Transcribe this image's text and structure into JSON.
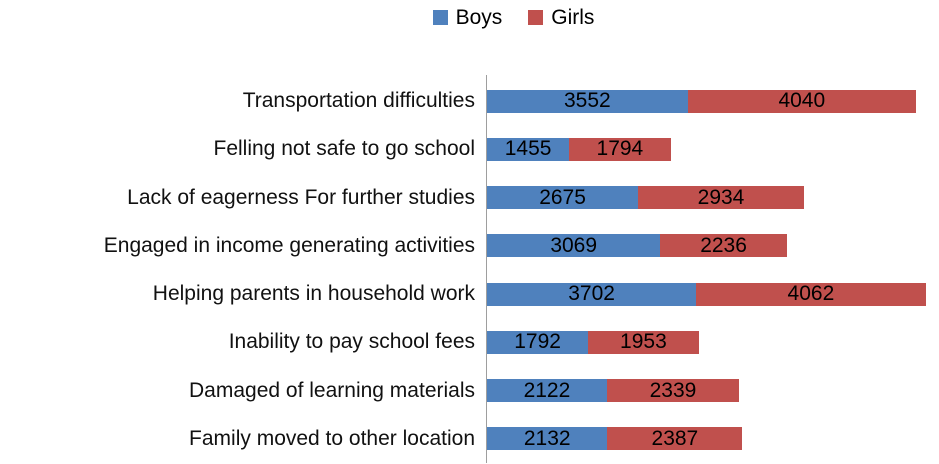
{
  "chart_data": {
    "type": "bar",
    "orientation": "horizontal",
    "stacked": true,
    "title": "",
    "xlabel": "",
    "ylabel": "",
    "categories": [
      "Transportation difficulties",
      "Felling not safe to go school",
      "Lack of eagerness For further studies",
      "Engaged in income generating activities",
      "Helping parents in household work",
      "Inability to pay school fees",
      "Damaged of learning materials",
      "Family moved to other location"
    ],
    "series": [
      {
        "name": "Boys",
        "color": "#4F81BD",
        "values": [
          3552,
          1455,
          2675,
          3069,
          3702,
          1792,
          2122,
          2132
        ]
      },
      {
        "name": "Girls",
        "color": "#C0504D",
        "values": [
          4040,
          1794,
          2934,
          2236,
          4062,
          1953,
          2339,
          2387
        ]
      }
    ],
    "xlim": [
      0,
      8000
    ],
    "grid": false,
    "data_labels": true,
    "legend_position": "top",
    "axis_color": "#9E9E9E",
    "text_color": "#000000"
  },
  "legend": {
    "items": [
      {
        "label": "Boys",
        "color": "#4F81BD"
      },
      {
        "label": "Girls",
        "color": "#C0504D"
      }
    ]
  }
}
